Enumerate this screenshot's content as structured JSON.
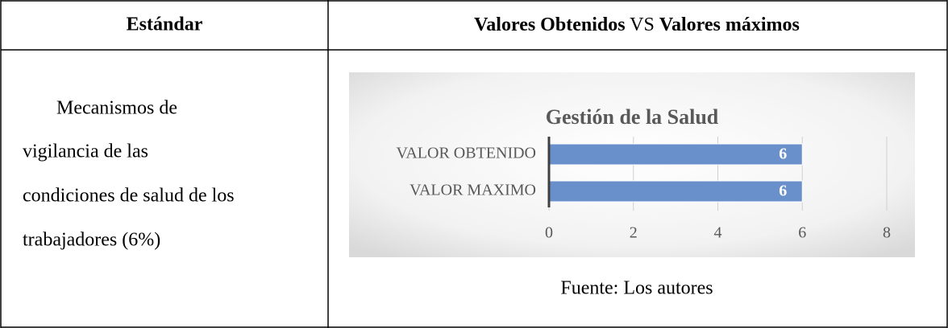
{
  "header": {
    "standard": "Estándar",
    "comparison": [
      "Valores Obtenidos",
      "VS",
      "Valores máximos"
    ]
  },
  "body": {
    "standard_lines": [
      "Mecanismos de",
      "vigilancia de las",
      "condiciones de salud de los",
      "trabajadores (6%)"
    ]
  },
  "chart_data": {
    "type": "barh",
    "title": "Gestión de la Salud",
    "categories": [
      "VALOR OBTENIDO",
      "VALOR MAXIMO"
    ],
    "values": [
      6,
      6
    ],
    "color": "#6a90cc",
    "xlim": [
      0,
      8
    ],
    "xticks": [
      0,
      2,
      4,
      6,
      8
    ],
    "grid": true
  },
  "caption": "Fuente: Los autores"
}
